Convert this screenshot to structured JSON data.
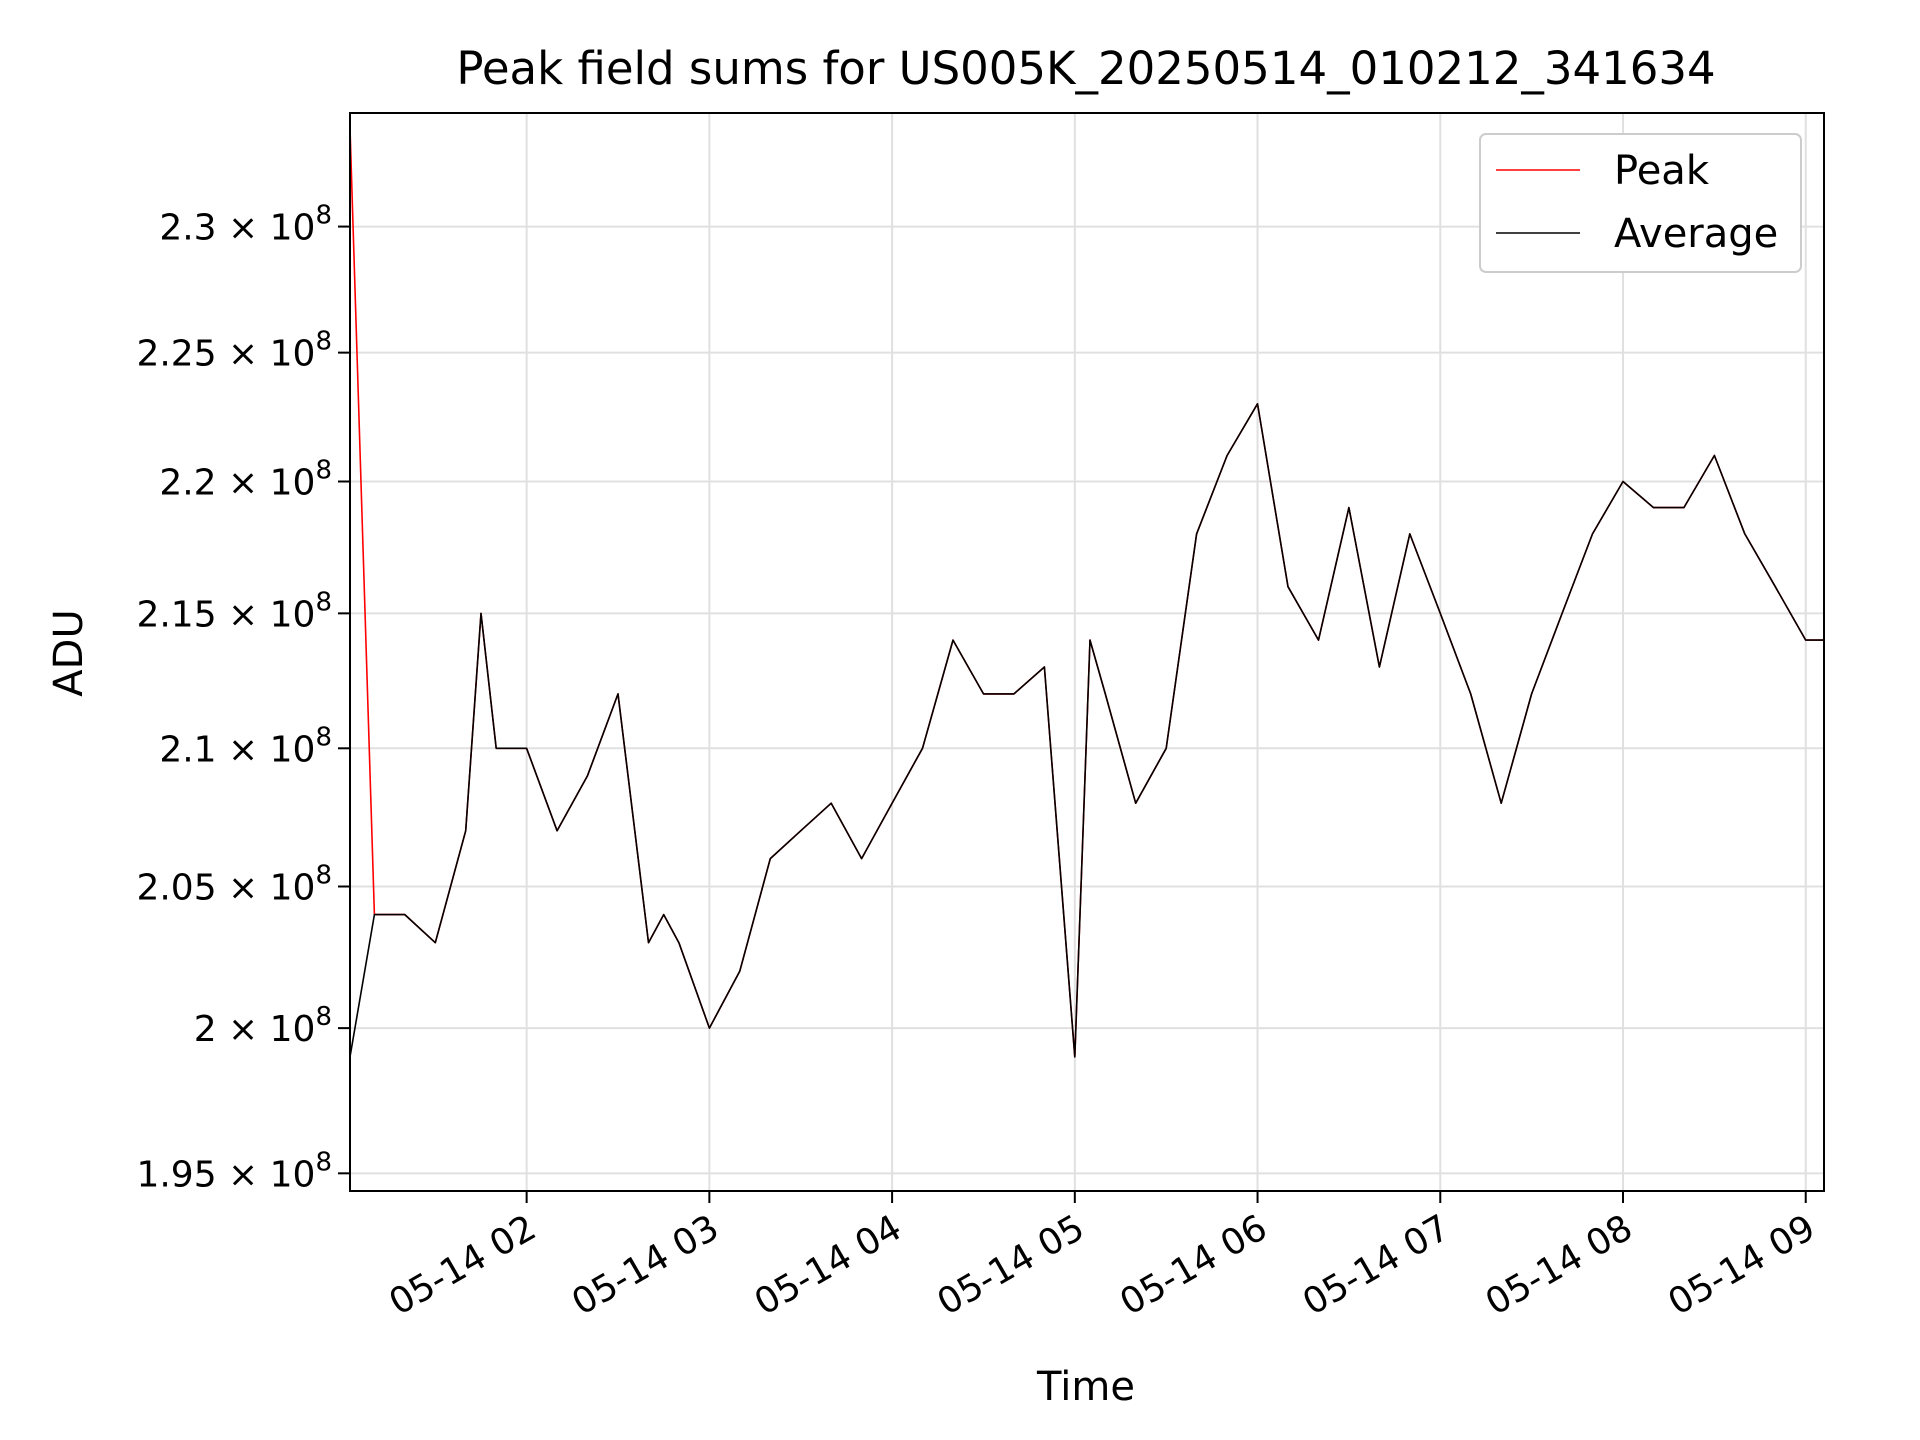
{
  "chart_data": {
    "type": "line",
    "title": "Peak field sums for US005K_20250514_010212_341634",
    "xlabel": "Time",
    "ylabel": "ADU",
    "x_range": [
      "05-14 01:02",
      "05-14 09:06"
    ],
    "ylim": [
      194400000,
      234600000
    ],
    "y_scale": "log",
    "grid": true,
    "legend_position": "upper right",
    "x_ticks": [
      "05-14 02",
      "05-14 03",
      "05-14 04",
      "05-14 05",
      "05-14 06",
      "05-14 07",
      "05-14 08",
      "05-14 09"
    ],
    "y_ticks": [
      {
        "value": 195000000,
        "mantissa": "1.95"
      },
      {
        "value": 200000000,
        "mantissa": "2"
      },
      {
        "value": 205000000,
        "mantissa": "2.05"
      },
      {
        "value": 210000000,
        "mantissa": "2.1"
      },
      {
        "value": 215000000,
        "mantissa": "2.15"
      },
      {
        "value": 220000000,
        "mantissa": "2.2"
      },
      {
        "value": 225000000,
        "mantissa": "2.25"
      },
      {
        "value": 230000000,
        "mantissa": "2.3"
      }
    ],
    "y_tick_exponent": "8",
    "times": [
      "01:02",
      "01:10",
      "01:20",
      "01:30",
      "01:40",
      "01:45",
      "01:50",
      "02:00",
      "02:10",
      "02:20",
      "02:30",
      "02:40",
      "02:45",
      "02:50",
      "03:00",
      "03:10",
      "03:20",
      "03:30",
      "03:40",
      "03:50",
      "04:00",
      "04:10",
      "04:20",
      "04:30",
      "04:40",
      "04:50",
      "05:00",
      "05:05",
      "05:10",
      "05:20",
      "05:30",
      "05:40",
      "05:50",
      "06:00",
      "06:10",
      "06:20",
      "06:30",
      "06:40",
      "06:50",
      "07:00",
      "07:10",
      "07:20",
      "07:30",
      "07:40",
      "07:50",
      "08:00",
      "08:10",
      "08:20",
      "08:30",
      "08:40",
      "08:50",
      "09:00",
      "09:06"
    ],
    "series": [
      {
        "name": "Peak",
        "color": "#ff0000",
        "values": [
          234000000,
          204000000,
          204000000,
          203000000,
          207000000,
          215000000,
          210000000,
          210000000,
          207000000,
          209000000,
          212000000,
          203000000,
          204000000,
          203000000,
          200000000,
          202000000,
          206000000,
          207000000,
          208000000,
          206000000,
          208000000,
          210000000,
          214000000,
          212000000,
          212000000,
          213000000,
          199000000,
          214000000,
          212000000,
          208000000,
          210000000,
          218000000,
          221000000,
          223000000,
          216000000,
          214000000,
          219000000,
          213000000,
          218000000,
          215000000,
          212000000,
          208000000,
          212000000,
          215000000,
          218000000,
          220000000,
          219000000,
          219000000,
          221000000,
          218000000,
          216000000,
          214000000,
          214000000
        ]
      },
      {
        "name": "Average",
        "color": "#000000",
        "values": [
          199000000,
          204000000,
          204000000,
          203000000,
          207000000,
          215000000,
          210000000,
          210000000,
          207000000,
          209000000,
          212000000,
          203000000,
          204000000,
          203000000,
          200000000,
          202000000,
          206000000,
          207000000,
          208000000,
          206000000,
          208000000,
          210000000,
          214000000,
          212000000,
          212000000,
          213000000,
          199000000,
          214000000,
          212000000,
          208000000,
          210000000,
          218000000,
          221000000,
          223000000,
          216000000,
          214000000,
          219000000,
          213000000,
          218000000,
          215000000,
          212000000,
          208000000,
          212000000,
          215000000,
          218000000,
          220000000,
          219000000,
          219000000,
          221000000,
          218000000,
          216000000,
          214000000,
          214000000
        ]
      }
    ]
  }
}
